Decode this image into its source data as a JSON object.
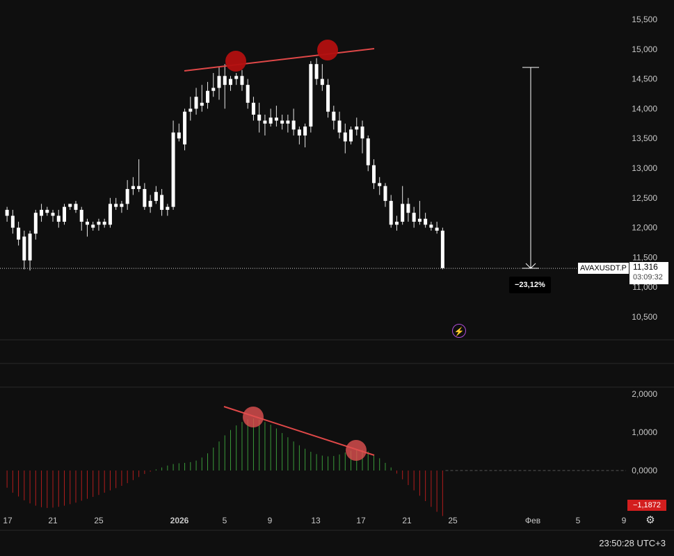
{
  "chart_data": {
    "type": "candlestick",
    "symbol": "AVAXUSDT.P",
    "last_price": "11,316",
    "countdown": "03:09:32",
    "measure_label": "−23,12%",
    "indicator_value": "−1,1872",
    "price_axis": {
      "ylim": [
        10200,
        15700
      ],
      "ticks": [
        "15,500",
        "15,000",
        "14,500",
        "14,000",
        "13,500",
        "13,000",
        "12,500",
        "12,000",
        "11,500",
        "11,000",
        "10,500"
      ],
      "tick_values": [
        15500,
        15000,
        14500,
        14000,
        13500,
        13000,
        12500,
        12000,
        11500,
        11000,
        10500
      ]
    },
    "indicator_axis": {
      "ylim": [
        -1.2,
        2.1
      ],
      "ticks": [
        "2,0000",
        "1,0000",
        "0,0000"
      ],
      "tick_values": [
        2,
        1,
        0
      ]
    },
    "time_axis": {
      "labels": [
        "17",
        "21",
        "25",
        "2026",
        "5",
        "9",
        "13",
        "17",
        "21",
        "25",
        "Фев",
        "5",
        "9"
      ]
    },
    "ohlc": [
      [
        12.3,
        12.35,
        12.1,
        12.2
      ],
      [
        12.2,
        12.3,
        11.9,
        12.0
      ],
      [
        12.0,
        12.1,
        11.7,
        11.8
      ],
      [
        11.85,
        11.95,
        11.3,
        11.45
      ],
      [
        11.45,
        11.95,
        11.28,
        11.9
      ],
      [
        11.9,
        12.3,
        11.8,
        12.25
      ],
      [
        12.2,
        12.4,
        12.1,
        12.3
      ],
      [
        12.3,
        12.35,
        12.2,
        12.25
      ],
      [
        12.25,
        12.3,
        12.1,
        12.2
      ],
      [
        12.2,
        12.3,
        12.0,
        12.1
      ],
      [
        12.1,
        12.4,
        12.05,
        12.35
      ],
      [
        12.35,
        12.4,
        12.3,
        12.4
      ],
      [
        12.4,
        12.45,
        12.25,
        12.3
      ],
      [
        12.3,
        12.35,
        11.95,
        12.1
      ],
      [
        12.1,
        12.15,
        11.85,
        12.05
      ],
      [
        12.05,
        12.1,
        11.95,
        12.0
      ],
      [
        12.05,
        12.15,
        11.95,
        12.1
      ],
      [
        12.1,
        12.15,
        12.0,
        12.05
      ],
      [
        12.05,
        12.5,
        12.0,
        12.4
      ],
      [
        12.4,
        12.5,
        12.3,
        12.35
      ],
      [
        12.35,
        12.45,
        12.25,
        12.4
      ],
      [
        12.4,
        12.8,
        12.3,
        12.65
      ],
      [
        12.65,
        12.85,
        12.55,
        12.7
      ],
      [
        12.7,
        13.15,
        12.6,
        12.65
      ],
      [
        12.65,
        12.75,
        12.3,
        12.35
      ],
      [
        12.35,
        12.55,
        12.25,
        12.45
      ],
      [
        12.45,
        12.7,
        12.4,
        12.6
      ],
      [
        12.55,
        12.65,
        12.2,
        12.3
      ],
      [
        12.3,
        12.4,
        12.2,
        12.35
      ],
      [
        12.35,
        13.8,
        12.3,
        13.6
      ],
      [
        13.6,
        13.75,
        13.45,
        13.5
      ],
      [
        13.4,
        14.0,
        13.3,
        13.95
      ],
      [
        13.95,
        14.2,
        13.8,
        14.0
      ],
      [
        14.0,
        14.35,
        13.9,
        14.2
      ],
      [
        14.05,
        14.4,
        13.95,
        14.1
      ],
      [
        14.1,
        14.45,
        14.0,
        14.3
      ],
      [
        14.3,
        14.6,
        14.2,
        14.35
      ],
      [
        14.35,
        14.7,
        14.15,
        14.55
      ],
      [
        14.55,
        14.75,
        14.0,
        14.4
      ],
      [
        14.4,
        14.55,
        14.3,
        14.5
      ],
      [
        14.5,
        14.6,
        14.4,
        14.55
      ],
      [
        14.55,
        14.65,
        14.3,
        14.4
      ],
      [
        14.4,
        14.5,
        14.0,
        14.1
      ],
      [
        14.1,
        14.2,
        13.8,
        13.9
      ],
      [
        13.9,
        14.1,
        13.6,
        13.8
      ],
      [
        13.8,
        13.9,
        13.55,
        13.75
      ],
      [
        13.75,
        14.0,
        13.7,
        13.85
      ],
      [
        13.85,
        14.05,
        13.7,
        13.8
      ],
      [
        13.8,
        13.9,
        13.65,
        13.75
      ],
      [
        13.75,
        13.9,
        13.6,
        13.8
      ],
      [
        13.8,
        14.0,
        13.55,
        13.65
      ],
      [
        13.65,
        13.7,
        13.4,
        13.55
      ],
      [
        13.55,
        13.75,
        13.35,
        13.7
      ],
      [
        13.7,
        14.8,
        13.6,
        14.75
      ],
      [
        14.75,
        14.85,
        14.4,
        14.5
      ],
      [
        14.5,
        14.75,
        14.3,
        14.4
      ],
      [
        14.4,
        14.5,
        13.85,
        13.95
      ],
      [
        13.95,
        14.05,
        13.65,
        13.8
      ],
      [
        13.8,
        13.95,
        13.5,
        13.6
      ],
      [
        13.6,
        13.75,
        13.25,
        13.45
      ],
      [
        13.45,
        13.7,
        13.4,
        13.65
      ],
      [
        13.65,
        13.85,
        13.55,
        13.7
      ],
      [
        13.7,
        13.8,
        13.25,
        13.5
      ],
      [
        13.5,
        13.55,
        12.95,
        13.05
      ],
      [
        13.05,
        13.15,
        12.65,
        12.75
      ],
      [
        12.75,
        12.85,
        12.55,
        12.7
      ],
      [
        12.7,
        12.75,
        12.35,
        12.45
      ],
      [
        12.45,
        12.55,
        12.0,
        12.05
      ],
      [
        12.05,
        12.2,
        11.95,
        12.1
      ],
      [
        12.1,
        12.7,
        12.05,
        12.4
      ],
      [
        12.4,
        12.5,
        12.1,
        12.25
      ],
      [
        12.25,
        12.35,
        12.0,
        12.1
      ],
      [
        12.1,
        12.45,
        12.05,
        12.15
      ],
      [
        12.15,
        12.25,
        12.0,
        12.05
      ],
      [
        12.05,
        12.1,
        11.95,
        12.0
      ],
      [
        12.0,
        12.1,
        11.9,
        11.95
      ],
      [
        11.95,
        12.0,
        11.3,
        11.32
      ]
    ],
    "histogram": [
      -0.45,
      -0.58,
      -0.68,
      -0.78,
      -0.86,
      -0.92,
      -0.96,
      -0.98,
      -0.97,
      -0.95,
      -0.92,
      -0.88,
      -0.84,
      -0.79,
      -0.74,
      -0.69,
      -0.64,
      -0.58,
      -0.52,
      -0.46,
      -0.4,
      -0.33,
      -0.25,
      -0.17,
      -0.09,
      -0.03,
      0.03,
      0.08,
      0.13,
      0.17,
      0.19,
      0.2,
      0.22,
      0.26,
      0.34,
      0.45,
      0.6,
      0.76,
      0.92,
      1.06,
      1.18,
      1.27,
      1.34,
      1.36,
      1.33,
      1.27,
      1.2,
      1.1,
      0.98,
      0.87,
      0.76,
      0.66,
      0.57,
      0.49,
      0.43,
      0.39,
      0.37,
      0.38,
      0.42,
      0.47,
      0.52,
      0.55,
      0.54,
      0.5,
      0.42,
      0.32,
      0.2,
      0.08,
      -0.08,
      -0.23,
      -0.38,
      -0.52,
      -0.66,
      -0.8,
      -0.95,
      -1.08,
      -1.19
    ]
  }
}
